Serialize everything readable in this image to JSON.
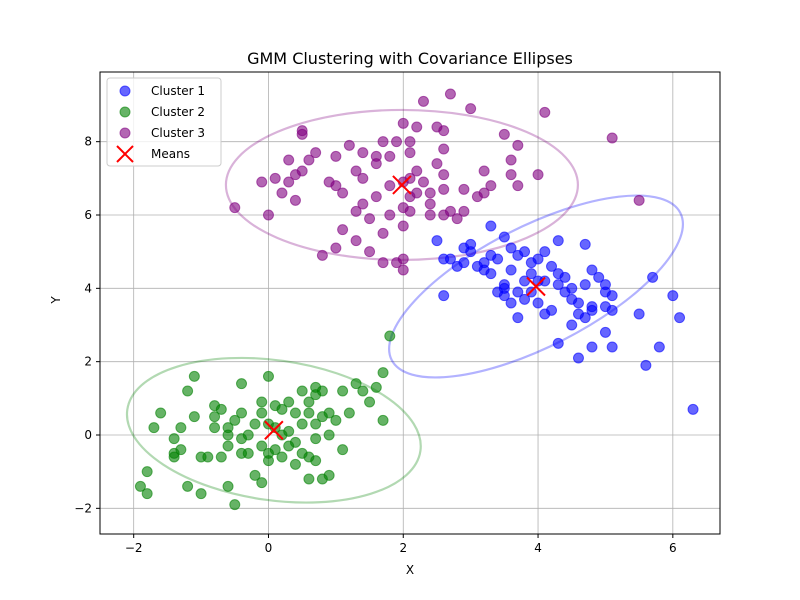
{
  "chart_data": {
    "type": "scatter",
    "title": "GMM Clustering with Covariance Ellipses",
    "xlabel": "X",
    "ylabel": "Y",
    "xlim": [
      -2.5,
      6.7
    ],
    "ylim": [
      -2.7,
      9.9
    ],
    "xticks": [
      -2,
      0,
      2,
      4,
      6
    ],
    "yticks": [
      -2,
      0,
      2,
      4,
      6,
      8
    ],
    "grid": true,
    "legend_position": "top-left",
    "series": [
      {
        "name": "Cluster 1",
        "color": "#0000ff",
        "points": [
          [
            2.5,
            5.3
          ],
          [
            2.6,
            4.8
          ],
          [
            2.7,
            4.8
          ],
          [
            2.8,
            4.6
          ],
          [
            2.9,
            5.1
          ],
          [
            2.9,
            4.7
          ],
          [
            3.0,
            5.2
          ],
          [
            3.0,
            5.0
          ],
          [
            3.1,
            4.6
          ],
          [
            3.2,
            4.5
          ],
          [
            3.3,
            5.7
          ],
          [
            3.3,
            4.9
          ],
          [
            3.3,
            4.4
          ],
          [
            3.4,
            4.8
          ],
          [
            3.4,
            3.9
          ],
          [
            3.5,
            5.4
          ],
          [
            3.5,
            4.1
          ],
          [
            3.5,
            3.8
          ],
          [
            3.6,
            3.6
          ],
          [
            3.6,
            5.1
          ],
          [
            3.6,
            4.5
          ],
          [
            3.7,
            4.9
          ],
          [
            3.7,
            3.9
          ],
          [
            3.7,
            3.2
          ],
          [
            3.8,
            5.0
          ],
          [
            3.8,
            4.2
          ],
          [
            3.8,
            3.7
          ],
          [
            3.9,
            4.7
          ],
          [
            3.9,
            4.4
          ],
          [
            3.9,
            3.9
          ],
          [
            4.0,
            4.8
          ],
          [
            4.0,
            4.2
          ],
          [
            4.0,
            3.6
          ],
          [
            4.1,
            5.0
          ],
          [
            4.1,
            4.2
          ],
          [
            4.1,
            3.3
          ],
          [
            4.2,
            4.6
          ],
          [
            4.3,
            5.3
          ],
          [
            4.3,
            4.4
          ],
          [
            4.3,
            4.1
          ],
          [
            4.3,
            2.5
          ],
          [
            4.4,
            4.3
          ],
          [
            4.4,
            3.9
          ],
          [
            4.5,
            4.0
          ],
          [
            4.5,
            3.7
          ],
          [
            4.5,
            3.0
          ],
          [
            4.6,
            3.6
          ],
          [
            4.6,
            3.3
          ],
          [
            4.6,
            2.1
          ],
          [
            4.7,
            5.2
          ],
          [
            4.7,
            4.1
          ],
          [
            4.7,
            3.2
          ],
          [
            4.8,
            4.5
          ],
          [
            4.8,
            3.5
          ],
          [
            4.8,
            3.4
          ],
          [
            4.8,
            2.4
          ],
          [
            4.9,
            4.3
          ],
          [
            5.0,
            4.1
          ],
          [
            5.0,
            3.9
          ],
          [
            5.0,
            3.5
          ],
          [
            5.0,
            2.8
          ],
          [
            5.1,
            3.8
          ],
          [
            5.1,
            3.4
          ],
          [
            5.1,
            2.4
          ],
          [
            5.5,
            3.3
          ],
          [
            5.6,
            1.9
          ],
          [
            5.7,
            4.3
          ],
          [
            5.8,
            2.4
          ],
          [
            6.0,
            3.8
          ],
          [
            6.1,
            3.2
          ],
          [
            6.3,
            0.7
          ],
          [
            2.6,
            3.8
          ],
          [
            3.2,
            4.7
          ],
          [
            3.5,
            4.0
          ],
          [
            4.2,
            3.4
          ]
        ]
      },
      {
        "name": "Cluster 2",
        "color": "#008000",
        "points": [
          [
            -1.9,
            -1.4
          ],
          [
            -1.8,
            -1.0
          ],
          [
            -1.8,
            -1.6
          ],
          [
            -1.7,
            0.2
          ],
          [
            -1.6,
            0.6
          ],
          [
            -1.4,
            -0.1
          ],
          [
            -1.4,
            -0.5
          ],
          [
            -1.4,
            -0.6
          ],
          [
            -1.3,
            0.2
          ],
          [
            -1.2,
            1.2
          ],
          [
            -1.2,
            -1.4
          ],
          [
            -1.1,
            1.6
          ],
          [
            -1.1,
            0.5
          ],
          [
            -1.0,
            -0.6
          ],
          [
            -1.0,
            -1.6
          ],
          [
            -0.9,
            -0.6
          ],
          [
            -0.8,
            0.8
          ],
          [
            -0.8,
            0.5
          ],
          [
            -0.8,
            0.2
          ],
          [
            -0.7,
            0.7
          ],
          [
            -0.7,
            -0.6
          ],
          [
            -0.6,
            0.2
          ],
          [
            -0.6,
            -0.3
          ],
          [
            -0.6,
            -1.4
          ],
          [
            -0.5,
            0.4
          ],
          [
            -0.5,
            -1.9
          ],
          [
            -0.4,
            1.4
          ],
          [
            -0.4,
            0.6
          ],
          [
            -0.4,
            -0.1
          ],
          [
            -0.4,
            -0.5
          ],
          [
            -0.3,
            0.0
          ],
          [
            -0.3,
            -0.5
          ],
          [
            -0.2,
            0.3
          ],
          [
            -0.2,
            -1.1
          ],
          [
            -0.1,
            0.9
          ],
          [
            -0.1,
            0.6
          ],
          [
            -0.1,
            -0.3
          ],
          [
            -0.1,
            -1.3
          ],
          [
            0.0,
            1.6
          ],
          [
            0.0,
            0.3
          ],
          [
            0.0,
            -0.5
          ],
          [
            0.0,
            -0.7
          ],
          [
            0.1,
            0.8
          ],
          [
            0.1,
            0.2
          ],
          [
            0.1,
            -0.4
          ],
          [
            0.2,
            0.7
          ],
          [
            0.2,
            0.0
          ],
          [
            0.2,
            -0.6
          ],
          [
            0.3,
            0.9
          ],
          [
            0.3,
            0.1
          ],
          [
            0.4,
            0.6
          ],
          [
            0.4,
            -0.2
          ],
          [
            0.4,
            -0.8
          ],
          [
            0.5,
            1.2
          ],
          [
            0.5,
            0.3
          ],
          [
            0.5,
            -0.5
          ],
          [
            0.6,
            0.9
          ],
          [
            0.6,
            -0.6
          ],
          [
            0.6,
            -1.2
          ],
          [
            0.7,
            1.3
          ],
          [
            0.7,
            1.1
          ],
          [
            0.7,
            0.3
          ],
          [
            0.7,
            -0.1
          ],
          [
            0.7,
            -0.7
          ],
          [
            0.8,
            1.2
          ],
          [
            0.8,
            0.5
          ],
          [
            0.8,
            -1.2
          ],
          [
            0.9,
            0.6
          ],
          [
            0.9,
            -1.1
          ],
          [
            1.0,
            0.4
          ],
          [
            1.1,
            1.2
          ],
          [
            1.1,
            -0.4
          ],
          [
            1.2,
            0.6
          ],
          [
            1.3,
            1.4
          ],
          [
            1.4,
            1.2
          ],
          [
            1.5,
            0.9
          ],
          [
            1.6,
            1.3
          ],
          [
            1.7,
            1.7
          ],
          [
            1.7,
            0.4
          ],
          [
            1.8,
            2.7
          ],
          [
            -1.3,
            -0.4
          ],
          [
            0.3,
            -0.3
          ],
          [
            0.6,
            0.6
          ],
          [
            -0.6,
            0.0
          ],
          [
            0.9,
            0.0
          ]
        ]
      },
      {
        "name": "Cluster 3",
        "color": "#800080",
        "points": [
          [
            -0.5,
            6.2
          ],
          [
            -0.1,
            6.9
          ],
          [
            0.0,
            6.0
          ],
          [
            0.1,
            7.0
          ],
          [
            0.2,
            6.6
          ],
          [
            0.3,
            7.5
          ],
          [
            0.3,
            6.9
          ],
          [
            0.4,
            7.1
          ],
          [
            0.4,
            6.4
          ],
          [
            0.5,
            8.3
          ],
          [
            0.5,
            8.2
          ],
          [
            0.5,
            7.2
          ],
          [
            0.6,
            7.5
          ],
          [
            0.7,
            7.7
          ],
          [
            0.8,
            4.9
          ],
          [
            0.9,
            6.9
          ],
          [
            1.0,
            7.6
          ],
          [
            1.0,
            6.8
          ],
          [
            1.0,
            5.1
          ],
          [
            1.1,
            6.6
          ],
          [
            1.1,
            5.6
          ],
          [
            1.2,
            7.9
          ],
          [
            1.3,
            7.2
          ],
          [
            1.3,
            6.1
          ],
          [
            1.3,
            5.3
          ],
          [
            1.4,
            7.7
          ],
          [
            1.4,
            7.0
          ],
          [
            1.4,
            6.3
          ],
          [
            1.5,
            5.9
          ],
          [
            1.5,
            5.0
          ],
          [
            1.6,
            7.6
          ],
          [
            1.6,
            7.4
          ],
          [
            1.6,
            6.5
          ],
          [
            1.7,
            8.0
          ],
          [
            1.7,
            5.5
          ],
          [
            1.7,
            4.7
          ],
          [
            1.8,
            7.6
          ],
          [
            1.8,
            6.8
          ],
          [
            1.8,
            6.0
          ],
          [
            1.9,
            8.0
          ],
          [
            1.9,
            4.7
          ],
          [
            2.0,
            8.5
          ],
          [
            2.0,
            6.9
          ],
          [
            2.0,
            6.2
          ],
          [
            2.0,
            5.7
          ],
          [
            2.0,
            4.8
          ],
          [
            2.1,
            8.0
          ],
          [
            2.1,
            7.7
          ],
          [
            2.1,
            7.0
          ],
          [
            2.1,
            6.5
          ],
          [
            2.1,
            6.1
          ],
          [
            2.2,
            8.4
          ],
          [
            2.2,
            7.2
          ],
          [
            2.2,
            6.6
          ],
          [
            2.3,
            9.1
          ],
          [
            2.3,
            6.9
          ],
          [
            2.4,
            6.6
          ],
          [
            2.4,
            6.3
          ],
          [
            2.5,
            8.4
          ],
          [
            2.5,
            7.4
          ],
          [
            2.6,
            8.3
          ],
          [
            2.6,
            7.8
          ],
          [
            2.6,
            7.1
          ],
          [
            2.6,
            6.7
          ],
          [
            2.6,
            6.0
          ],
          [
            2.7,
            9.3
          ],
          [
            2.7,
            6.1
          ],
          [
            2.8,
            5.9
          ],
          [
            2.9,
            6.7
          ],
          [
            2.9,
            6.1
          ],
          [
            3.0,
            8.9
          ],
          [
            3.1,
            6.5
          ],
          [
            3.2,
            7.2
          ],
          [
            3.2,
            6.6
          ],
          [
            3.3,
            6.8
          ],
          [
            3.5,
            8.2
          ],
          [
            3.6,
            7.5
          ],
          [
            3.6,
            7.1
          ],
          [
            3.7,
            7.9
          ],
          [
            3.7,
            6.8
          ],
          [
            4.0,
            7.1
          ],
          [
            4.1,
            8.8
          ],
          [
            5.1,
            8.1
          ],
          [
            5.5,
            6.4
          ],
          [
            2.0,
            4.5
          ],
          [
            2.4,
            6.0
          ]
        ]
      }
    ],
    "means": {
      "name": "Means",
      "color": "#ff0000",
      "points": [
        [
          3.97,
          4.05
        ],
        [
          0.08,
          0.13
        ],
        [
          1.98,
          6.82
        ]
      ]
    },
    "ellipses": [
      {
        "cluster": "Cluster 1",
        "color": "#0000ff",
        "center": [
          3.97,
          4.05
        ],
        "width_x": 4.63,
        "height_y": 4.3,
        "angle_deg": 0
      },
      {
        "cluster": "Cluster 2",
        "color": "#008000",
        "center": [
          0.08,
          0.13
        ],
        "width_x": 4.4,
        "height_y": 4.2,
        "angle_deg": 0
      },
      {
        "cluster": "Cluster 3",
        "color": "#800080",
        "center": [
          1.98,
          6.82
        ],
        "width_x": 5.3,
        "height_y": 4.8,
        "angle_deg": 0
      }
    ]
  }
}
